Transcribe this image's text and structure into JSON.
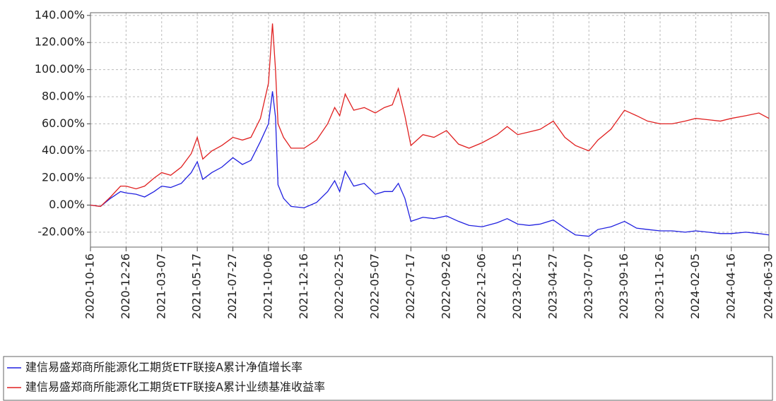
{
  "chart_data": {
    "type": "line",
    "x": [
      "2020-10-16",
      "2020-11-05",
      "2020-11-25",
      "2020-12-15",
      "2020-12-26",
      "2021-01-15",
      "2021-02-01",
      "2021-02-20",
      "2021-03-07",
      "2021-03-25",
      "2021-04-15",
      "2021-05-05",
      "2021-05-17",
      "2021-05-28",
      "2021-06-15",
      "2021-07-05",
      "2021-07-27",
      "2021-08-15",
      "2021-09-01",
      "2021-09-20",
      "2021-10-06",
      "2021-10-14",
      "2021-10-20",
      "2021-10-25",
      "2021-11-05",
      "2021-11-20",
      "2021-12-16",
      "2022-01-10",
      "2022-02-01",
      "2022-02-15",
      "2022-02-25",
      "2022-03-08",
      "2022-03-25",
      "2022-04-15",
      "2022-05-07",
      "2022-05-25",
      "2022-06-10",
      "2022-06-22",
      "2022-07-05",
      "2022-07-17",
      "2022-08-10",
      "2022-09-01",
      "2022-09-26",
      "2022-10-20",
      "2022-11-10",
      "2022-12-06",
      "2023-01-05",
      "2023-01-25",
      "2023-02-15",
      "2023-03-10",
      "2023-04-01",
      "2023-04-27",
      "2023-05-20",
      "2023-06-10",
      "2023-07-07",
      "2023-07-25",
      "2023-08-20",
      "2023-09-16",
      "2023-10-10",
      "2023-11-01",
      "2023-11-26",
      "2023-12-20",
      "2024-01-15",
      "2024-02-05",
      "2024-03-01",
      "2024-03-25",
      "2024-04-16",
      "2024-05-15",
      "2024-06-10",
      "2024-06-30"
    ],
    "series": [
      {
        "name": "建信易盛郑商所能源化工期货ETF联接A累计净值增长率",
        "color": "#2020e0",
        "values": [
          0,
          -1,
          5,
          10,
          9,
          8,
          6,
          10,
          14,
          13,
          16,
          24,
          32,
          19,
          24,
          28,
          35,
          30,
          33,
          47,
          60,
          84,
          65,
          15,
          5,
          -1,
          -2,
          2,
          10,
          18,
          10,
          25,
          14,
          16,
          8,
          10,
          10,
          16,
          5,
          -12,
          -9,
          -10,
          -8,
          -12,
          -15,
          -16,
          -13,
          -10,
          -14,
          -15,
          -14,
          -11,
          -17,
          -22,
          -23,
          -18,
          -16,
          -12,
          -17,
          -18,
          -19,
          -19,
          -20,
          -19,
          -20,
          -21,
          -21,
          -20,
          -21,
          -22
        ]
      },
      {
        "name": "建信易盛郑商所能源化工期货ETF联接A累计业绩基准收益率",
        "color": "#e02020",
        "values": [
          0,
          -1,
          6,
          14,
          14,
          12,
          14,
          20,
          24,
          22,
          28,
          38,
          50,
          34,
          40,
          44,
          50,
          48,
          50,
          64,
          90,
          134,
          100,
          60,
          50,
          42,
          42,
          48,
          60,
          72,
          66,
          82,
          70,
          72,
          68,
          72,
          74,
          86,
          66,
          44,
          52,
          50,
          55,
          45,
          42,
          46,
          52,
          58,
          52,
          54,
          56,
          62,
          50,
          44,
          40,
          48,
          56,
          70,
          66,
          62,
          60,
          60,
          62,
          64,
          63,
          62,
          64,
          66,
          68,
          64
        ]
      }
    ],
    "xlim": [
      "2020-10-16",
      "2024-06-30"
    ],
    "xticks": [
      "2020-10-16",
      "2020-12-26",
      "2021-03-07",
      "2021-05-17",
      "2021-07-27",
      "2021-10-06",
      "2021-12-16",
      "2022-02-25",
      "2022-05-07",
      "2022-07-17",
      "2022-09-26",
      "2022-12-06",
      "2023-02-15",
      "2023-04-27",
      "2023-07-07",
      "2023-09-16",
      "2023-11-26",
      "2024-02-05",
      "2024-04-16",
      "2024-06-30"
    ],
    "ylim": [
      -31,
      142
    ],
    "yticks": [
      {
        "value": -20,
        "label": "-20.00%"
      },
      {
        "value": 0,
        "label": "0.00%"
      },
      {
        "value": 20,
        "label": "20.00%"
      },
      {
        "value": 40,
        "label": "40.00%"
      },
      {
        "value": 60,
        "label": "60.00%"
      },
      {
        "value": 80,
        "label": "80.00%"
      },
      {
        "value": 100,
        "label": "100.00%"
      },
      {
        "value": 120,
        "label": "120.00%"
      },
      {
        "value": 140,
        "label": "140.00%"
      }
    ],
    "grid": true,
    "legend": "bottom"
  }
}
